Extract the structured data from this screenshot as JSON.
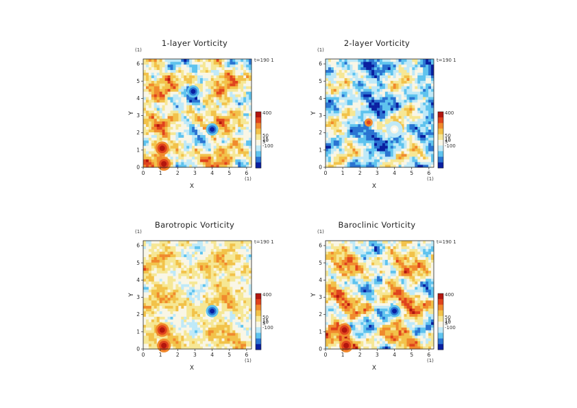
{
  "chart_data": [
    {
      "type": "heatmap",
      "title": "1-layer Vorticity",
      "xlabel": "X",
      "ylabel": "Y",
      "x_unit": "(1)",
      "y_unit": "(1)",
      "xlim": [
        0,
        6.283
      ],
      "ylim": [
        0,
        6.283
      ],
      "xticks": [
        "0",
        "1",
        "2",
        "3",
        "4",
        "5",
        "6"
      ],
      "yticks": [
        "0",
        "1",
        "2",
        "3",
        "4",
        "5",
        "6"
      ],
      "time_label": "t=190 1",
      "colorbar": {
        "labels": [
          "400",
          "50",
          "15",
          "10",
          "5",
          "-100"
        ]
      },
      "background_tone": "mixed",
      "features": [
        {
          "x": 1.1,
          "y": 1.1,
          "kind": "positive-vortex"
        },
        {
          "x": 1.2,
          "y": 0.2,
          "kind": "positive-vortex"
        },
        {
          "x": 4.0,
          "y": 2.2,
          "kind": "negative-vortex"
        },
        {
          "x": 2.9,
          "y": 4.4,
          "kind": "negative-vortex"
        }
      ]
    },
    {
      "type": "heatmap",
      "title": "2-layer Vorticity",
      "xlabel": "X",
      "ylabel": "Y",
      "x_unit": "(1)",
      "y_unit": "(1)",
      "xlim": [
        0,
        6.283
      ],
      "ylim": [
        0,
        6.283
      ],
      "xticks": [
        "0",
        "1",
        "2",
        "3",
        "4",
        "5",
        "6"
      ],
      "yticks": [
        "0",
        "1",
        "2",
        "3",
        "4",
        "5",
        "6"
      ],
      "time_label": "t=190 1",
      "colorbar": {
        "labels": [
          "400",
          "50",
          "15",
          "10",
          "5",
          "-100"
        ]
      },
      "background_tone": "cool",
      "features": [
        {
          "x": 4.0,
          "y": 2.2,
          "kind": "light-center"
        },
        {
          "x": 2.5,
          "y": 2.6,
          "kind": "positive-filament"
        }
      ]
    },
    {
      "type": "heatmap",
      "title": "Barotropic Vorticity",
      "xlabel": "X",
      "ylabel": "Y",
      "x_unit": "(1)",
      "y_unit": "(1)",
      "xlim": [
        0,
        6.283
      ],
      "ylim": [
        0,
        6.283
      ],
      "xticks": [
        "0",
        "1",
        "2",
        "3",
        "4",
        "5",
        "6"
      ],
      "yticks": [
        "0",
        "1",
        "2",
        "3",
        "4",
        "5",
        "6"
      ],
      "time_label": "t=190 1",
      "colorbar": {
        "labels": [
          "400",
          "50",
          "15",
          "10",
          "5",
          "-100"
        ]
      },
      "background_tone": "light",
      "features": [
        {
          "x": 1.1,
          "y": 1.1,
          "kind": "positive-vortex"
        },
        {
          "x": 1.2,
          "y": 0.2,
          "kind": "positive-vortex"
        },
        {
          "x": 4.0,
          "y": 2.2,
          "kind": "negative-vortex"
        }
      ]
    },
    {
      "type": "heatmap",
      "title": "Baroclinic Vorticity",
      "xlabel": "X",
      "ylabel": "Y",
      "x_unit": "(1)",
      "y_unit": "(1)",
      "xlim": [
        0,
        6.283
      ],
      "ylim": [
        0,
        6.283
      ],
      "xticks": [
        "0",
        "1",
        "2",
        "3",
        "4",
        "5",
        "6"
      ],
      "yticks": [
        "0",
        "1",
        "2",
        "3",
        "4",
        "5",
        "6"
      ],
      "time_label": "t=190 1",
      "colorbar": {
        "labels": [
          "400",
          "50",
          "15",
          "10",
          "5",
          "-100"
        ]
      },
      "background_tone": "mixed",
      "features": [
        {
          "x": 1.1,
          "y": 1.1,
          "kind": "positive-vortex"
        },
        {
          "x": 1.2,
          "y": 0.2,
          "kind": "positive-vortex"
        },
        {
          "x": 4.0,
          "y": 2.2,
          "kind": "negative-vortex"
        }
      ]
    }
  ],
  "colors": {
    "dark_red": "#b3160f",
    "red": "#e0431d",
    "orange": "#f08a2d",
    "gold": "#f2c24a",
    "yellow": "#f6e795",
    "pale": "#f9f6e6",
    "light_cyan": "#bfe9f8",
    "cyan": "#5fc3ee",
    "blue": "#2a74d2",
    "deep_blue": "#0a1fa0"
  }
}
